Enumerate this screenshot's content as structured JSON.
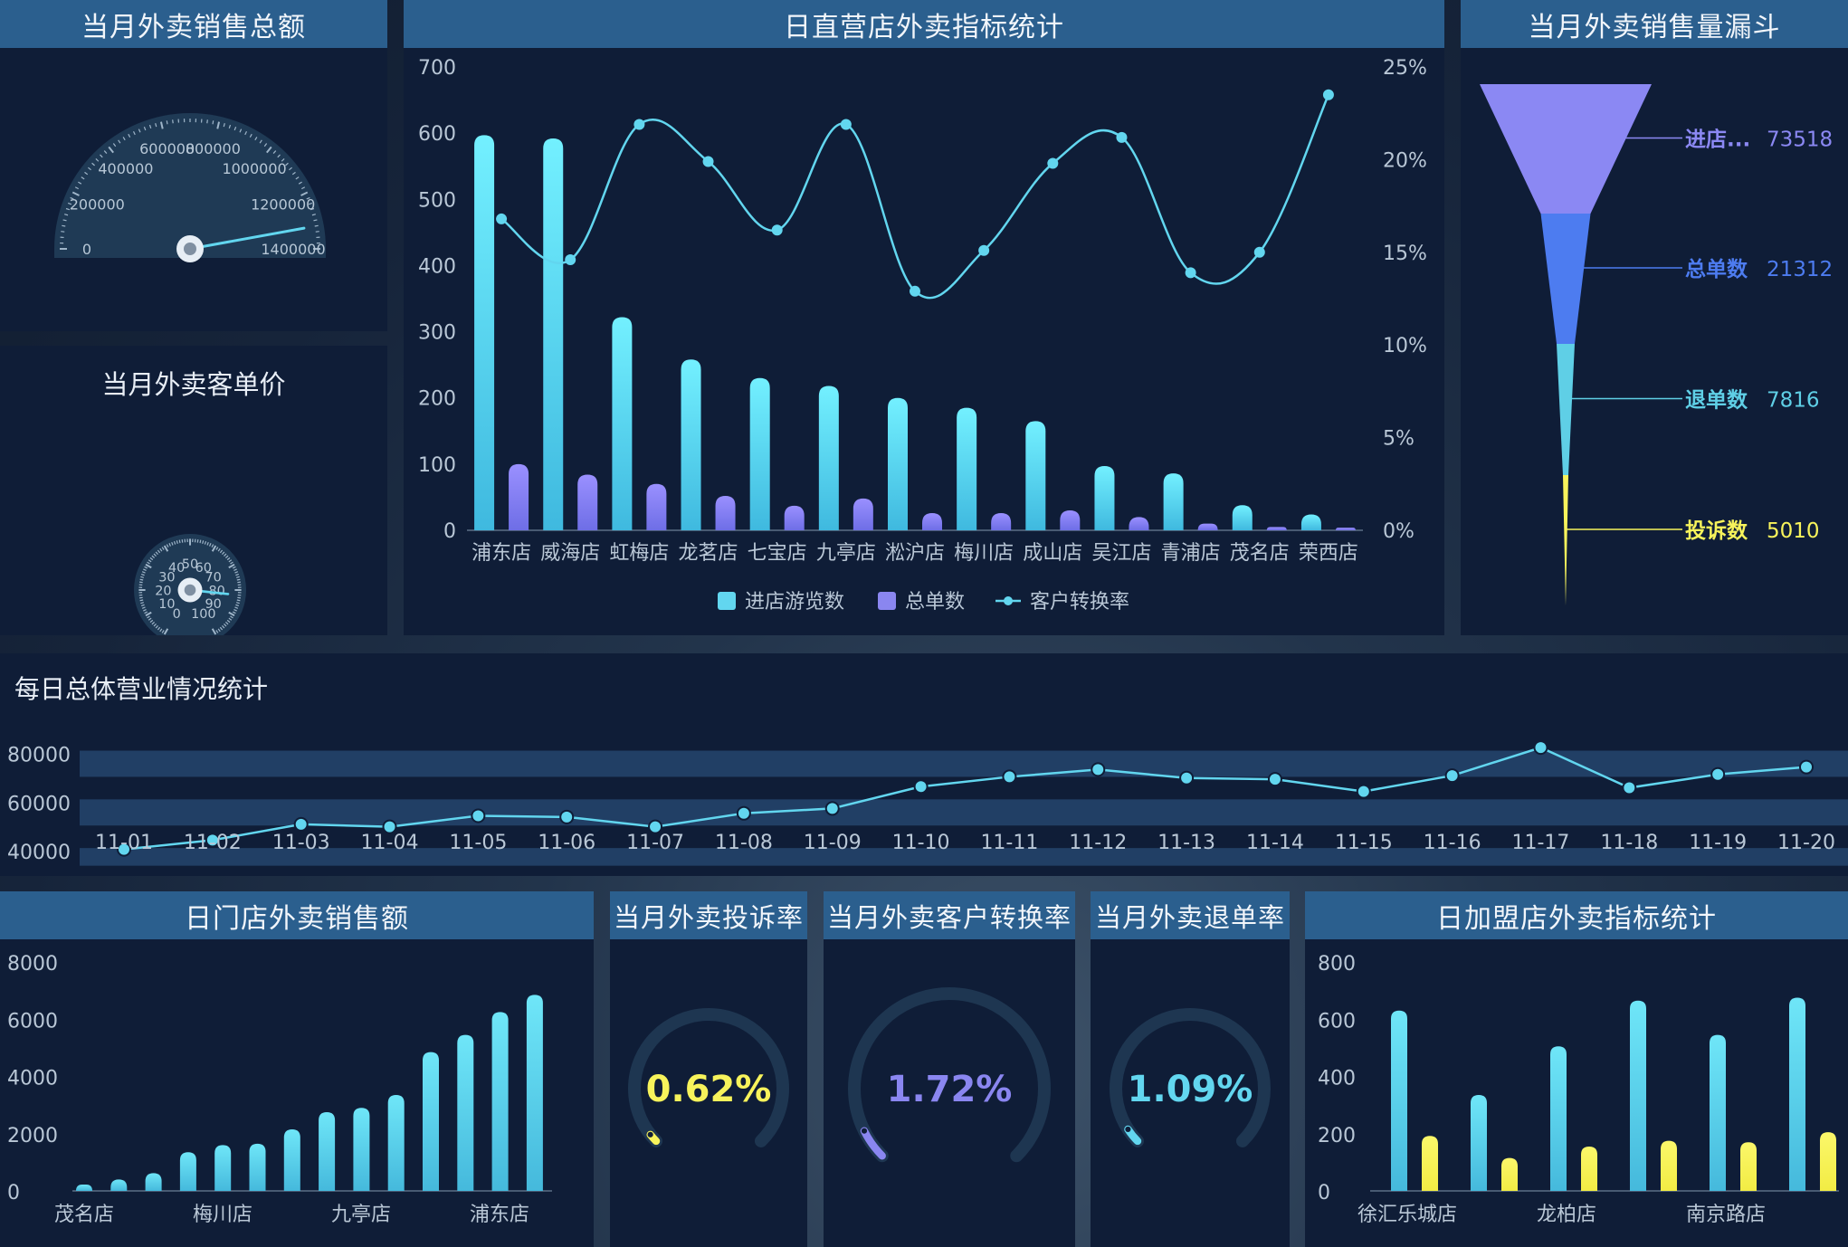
{
  "colors": {
    "panel_bg": "#0f1d37",
    "title_bar": "#2b5f8e",
    "cyan": "#62d6ef",
    "purple": "#8a86f0",
    "yellow": "#f7f35b",
    "funnel": [
      "#8b88f3",
      "#4d7cf0",
      "#5fcfe6",
      "#f7f35b"
    ]
  },
  "panels": {
    "total_sales": {
      "title": "当月外卖销售总额"
    },
    "unit_price": {
      "title": "当月外卖客单价"
    },
    "direct_store": {
      "title": "日直营店外卖指标统计"
    },
    "funnel": {
      "title": "当月外卖销售量漏斗"
    },
    "daily": {
      "title": "每日总体营业情况统计"
    },
    "store_sales": {
      "title": "日门店外卖销售额"
    },
    "complaint": {
      "title": "当月外卖投诉率"
    },
    "conversion": {
      "title": "当月外卖客户转换率"
    },
    "refund": {
      "title": "当月外卖退单率"
    },
    "franchise": {
      "title": "日加盟店外卖指标统计"
    }
  },
  "gauge_sales": {
    "ticks": [
      "0",
      "200000",
      "400000",
      "600000",
      "800000",
      "1000000",
      "1200000",
      "1400000"
    ],
    "min": 0,
    "max": 1400000,
    "value": 1320000
  },
  "gauge_price": {
    "ticks": [
      "0",
      "10",
      "20",
      "30",
      "40",
      "50",
      "60",
      "70",
      "80",
      "90",
      "100"
    ],
    "min": 0,
    "max": 100,
    "value": 82
  },
  "rates": {
    "complaint": {
      "label": "0.62%",
      "value": 0.62,
      "color": "#f7f35b"
    },
    "conversion": {
      "label": "1.72%",
      "value": 1.72,
      "color": "#8a86f0"
    },
    "refund": {
      "label": "1.09%",
      "value": 1.09,
      "color": "#62d6ef"
    }
  },
  "funnel_data": {
    "items": [
      {
        "label": "进店...",
        "value": "73518"
      },
      {
        "label": "总单数",
        "value": "21312"
      },
      {
        "label": "退单数",
        "value": "7816"
      },
      {
        "label": "投诉数",
        "value": "5010"
      }
    ]
  },
  "chart_data": [
    {
      "id": "direct_store",
      "type": "bar",
      "categories": [
        "浦东店",
        "威海店",
        "虹梅店",
        "龙茗店",
        "七宝店",
        "九亭店",
        "淞沪店",
        "梅川店",
        "成山店",
        "吴江店",
        "青浦店",
        "茂名店",
        "荣西店"
      ],
      "series": [
        {
          "name": "进店游览数",
          "type": "bar",
          "axis": "left",
          "values": [
            597,
            592,
            322,
            258,
            230,
            218,
            200,
            185,
            165,
            97,
            86,
            38,
            24
          ]
        },
        {
          "name": "总单数",
          "type": "bar",
          "axis": "left",
          "values": [
            100,
            84,
            70,
            52,
            37,
            48,
            26,
            26,
            30,
            20,
            10,
            5,
            4
          ]
        },
        {
          "name": "客户转换率",
          "type": "line",
          "axis": "right",
          "values": [
            16.8,
            14.6,
            21.9,
            19.9,
            16.2,
            21.9,
            12.9,
            15.1,
            19.8,
            21.2,
            13.9,
            15.0,
            23.5
          ]
        }
      ],
      "y_left": {
        "ticks": [
          "0",
          "100",
          "200",
          "300",
          "400",
          "500",
          "600",
          "700"
        ],
        "min": 0,
        "max": 700
      },
      "y_right": {
        "ticks": [
          "0%",
          "5%",
          "10%",
          "15%",
          "20%",
          "25%"
        ],
        "min": 0,
        "max": 25
      },
      "legend": [
        "进店游览数",
        "总单数",
        "客户转换率"
      ]
    },
    {
      "id": "daily",
      "type": "line",
      "x": [
        "11-01",
        "11-02",
        "11-03",
        "11-04",
        "11-05",
        "11-06",
        "11-07",
        "11-08",
        "11-09",
        "11-10",
        "11-11",
        "11-12",
        "11-13",
        "11-14",
        "11-15",
        "11-16",
        "11-17",
        "11-18",
        "11-19",
        "11-20"
      ],
      "values": [
        40200,
        44000,
        50500,
        49500,
        54000,
        53500,
        49500,
        55000,
        57000,
        66000,
        70000,
        73000,
        69500,
        69000,
        64000,
        70500,
        82000,
        65500,
        71000,
        74000
      ],
      "y_ticks": [
        "40000",
        "60000",
        "80000"
      ],
      "ylim": [
        33000,
        88000
      ]
    },
    {
      "id": "store_sales",
      "type": "bar",
      "x_labels": [
        "茂名店",
        "梅川店",
        "九亭店",
        "浦东店"
      ],
      "values": [
        220,
        400,
        620,
        1350,
        1600,
        1650,
        2150,
        2750,
        2900,
        3350,
        4850,
        5450,
        6250,
        6850
      ],
      "y_ticks": [
        "0",
        "2000",
        "4000",
        "6000",
        "8000"
      ],
      "ylim": [
        0,
        8000
      ]
    },
    {
      "id": "franchise",
      "type": "bar",
      "x_labels": [
        "徐汇乐城店",
        "龙柏店",
        "南京路店"
      ],
      "series": [
        {
          "values": [
            630,
            335,
            505,
            665,
            545,
            675
          ]
        },
        {
          "values": [
            192,
            115,
            155,
            175,
            170,
            205
          ]
        }
      ],
      "y_ticks": [
        "0",
        "200",
        "400",
        "600",
        "800"
      ],
      "ylim": [
        0,
        800
      ]
    }
  ]
}
